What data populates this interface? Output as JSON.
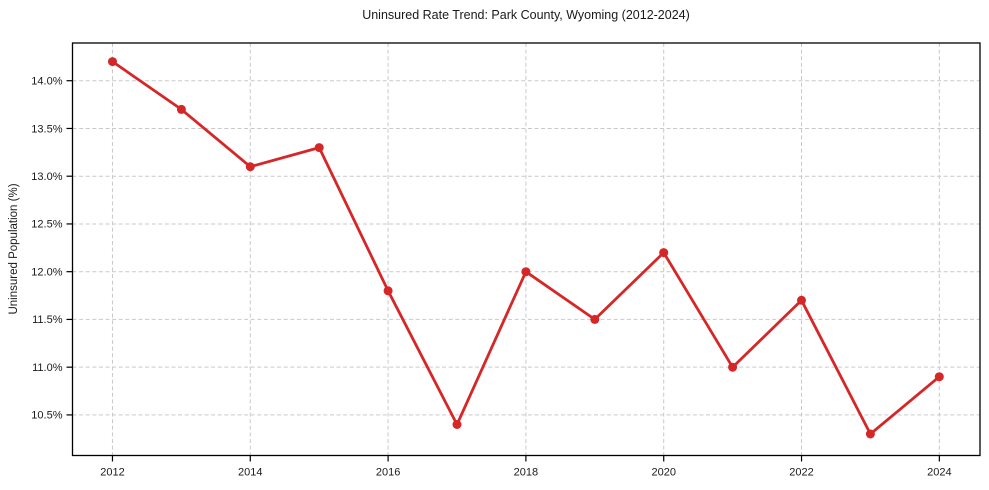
{
  "chart_data": {
    "type": "line",
    "title": "Uninsured Rate Trend: Park County, Wyoming (2012-2024)",
    "xlabel": "",
    "ylabel": "Uninsured Population (%)",
    "x": [
      2012,
      2013,
      2014,
      2015,
      2016,
      2017,
      2018,
      2019,
      2020,
      2021,
      2022,
      2023,
      2024
    ],
    "values": [
      14.2,
      13.7,
      13.1,
      13.3,
      11.8,
      10.4,
      12.0,
      11.5,
      12.2,
      11.0,
      11.7,
      10.3,
      10.9
    ],
    "series_name": "Uninsured Population (%)",
    "x_ticks": [
      2012,
      2014,
      2016,
      2018,
      2020,
      2022,
      2024
    ],
    "x_tick_labels": [
      "2012",
      "2014",
      "2016",
      "2018",
      "2020",
      "2022",
      "2024"
    ],
    "y_ticks": [
      10.5,
      11.0,
      11.5,
      12.0,
      12.5,
      13.0,
      13.5,
      14.0
    ],
    "y_tick_labels": [
      "10.5%",
      "11.0%",
      "11.5%",
      "12.0%",
      "12.5%",
      "13.0%",
      "13.5%",
      "14.0%"
    ],
    "xlim": [
      2011.42,
      2024.59
    ],
    "ylim": [
      10.075,
      14.395
    ],
    "grid": true,
    "grid_style": "dashed",
    "legend": "none",
    "line_color": "#d62728",
    "marker": "circle",
    "grid_color": "#c9c9c9",
    "axis_color": "#000000",
    "text_color": "#1a1a1a"
  }
}
